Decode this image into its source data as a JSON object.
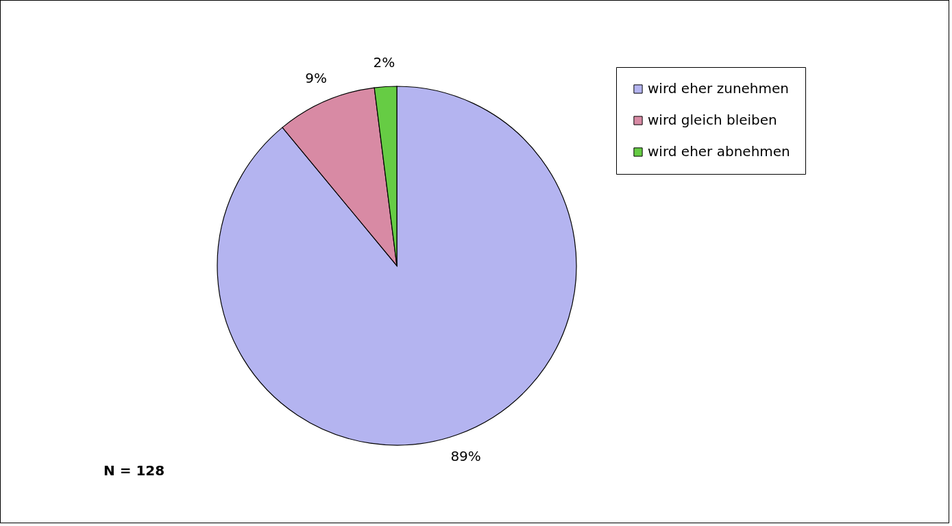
{
  "chart_data": {
    "type": "pie",
    "categories": [
      "wird eher zunehmen",
      "wird gleich bleiben",
      "wird eher abnehmen"
    ],
    "values": [
      89,
      9,
      2
    ],
    "colors": [
      "#b4b4f0",
      "#d88aa4",
      "#66cc44"
    ],
    "value_labels": [
      "89%",
      "9%",
      "2%"
    ],
    "legend": "top right",
    "annotations": [
      "N = 128"
    ]
  }
}
